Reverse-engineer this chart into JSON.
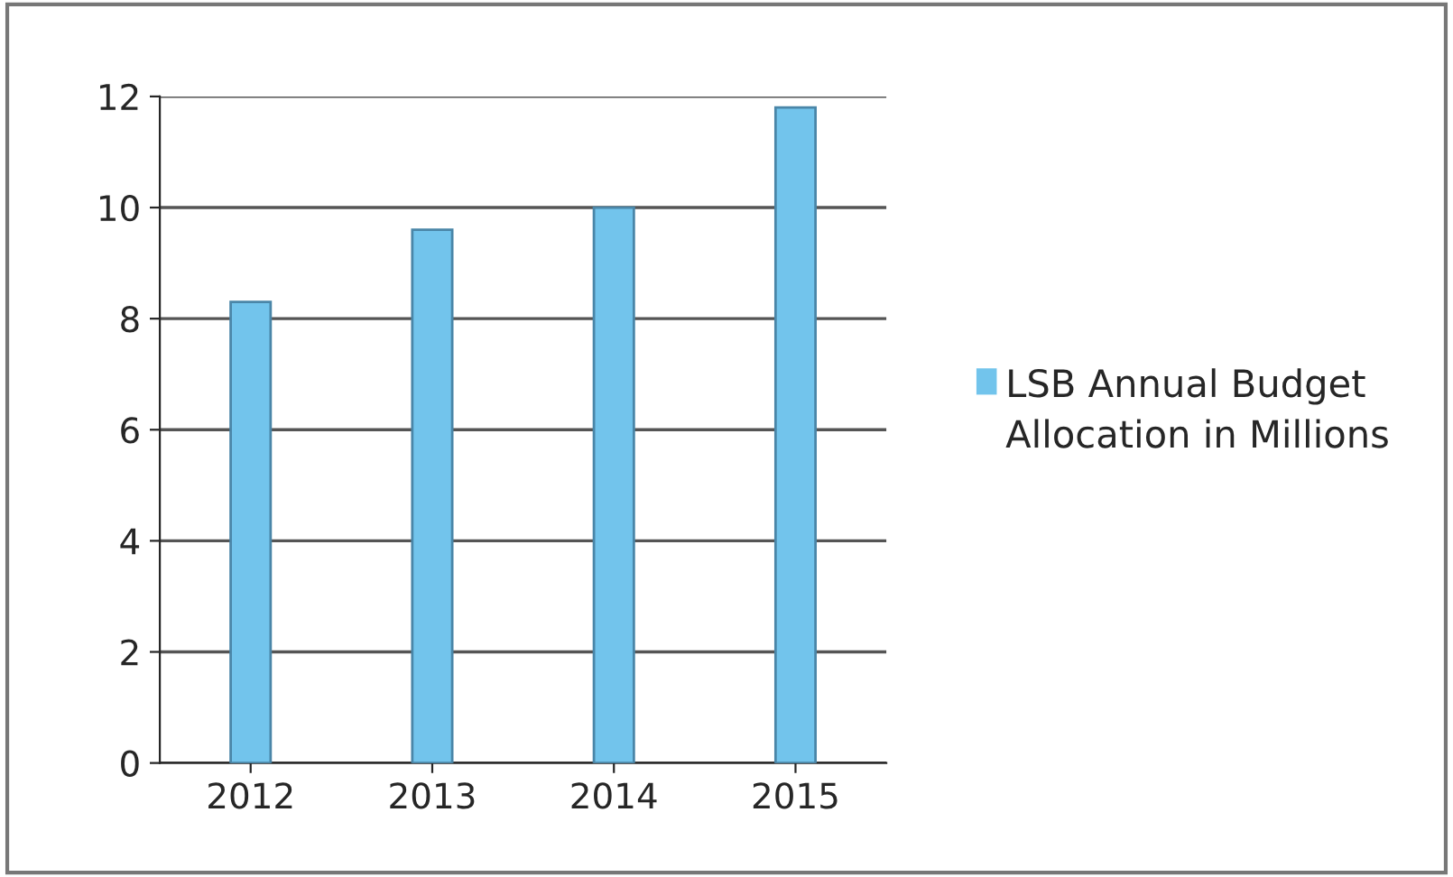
{
  "chart_data": {
    "type": "bar",
    "categories": [
      "2012",
      "2013",
      "2014",
      "2015"
    ],
    "series": [
      {
        "name": "LSB Annual Budget Allocation in Millions",
        "color": "#72c4ec",
        "values": [
          8.3,
          9.6,
          10.0,
          11.8
        ]
      }
    ],
    "ylim": [
      0,
      12
    ],
    "yticks": [
      0,
      2,
      4,
      6,
      8,
      10,
      12
    ],
    "grid": "y",
    "legend": "right"
  }
}
